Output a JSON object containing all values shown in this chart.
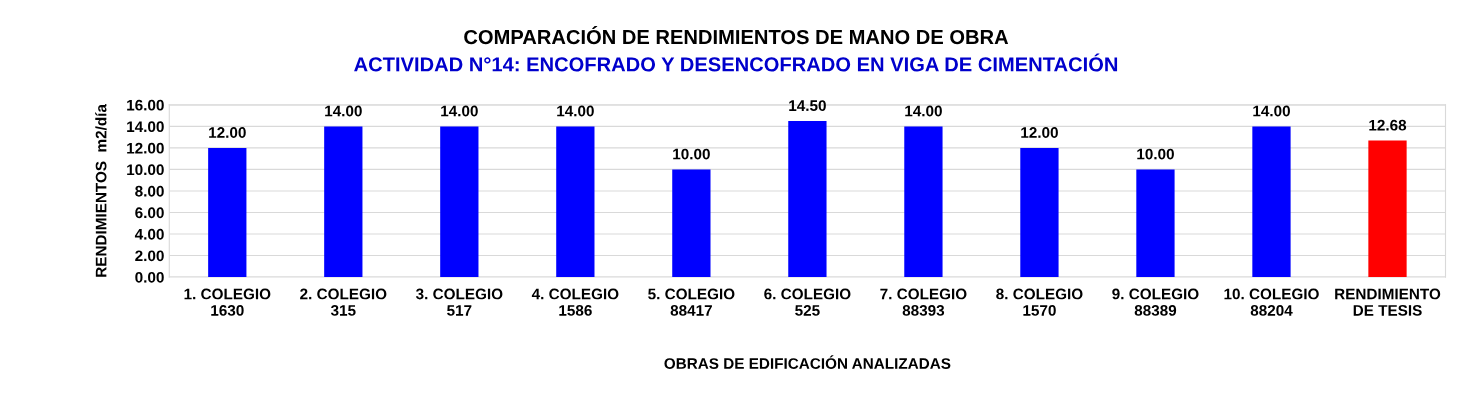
{
  "chart_data": {
    "type": "bar",
    "title": "COMPARACIÓN DE RENDIMIENTOS DE MANO DE OBRA",
    "subtitle": "ACTIVIDAD N°14: ENCOFRADO Y DESENCOFRADO EN VIGA DE CIMENTACIÓN",
    "xlabel": "OBRAS DE EDIFICACIÓN ANALIZADAS",
    "ylabel": "RENDIMIENTOS  m2/día",
    "categories": [
      "1. COLEGIO\n1630",
      "2. COLEGIO\n315",
      "3. COLEGIO\n517",
      "4. COLEGIO\n1586",
      "5. COLEGIO\n88417",
      "6. COLEGIO\n525",
      "7. COLEGIO\n88393",
      "8. COLEGIO\n1570",
      "9. COLEGIO\n88389",
      "10. COLEGIO\n88204",
      "RENDIMIENTO\nDE TESIS"
    ],
    "values": [
      12.0,
      14.0,
      14.0,
      14.0,
      10.0,
      14.5,
      14.0,
      12.0,
      10.0,
      14.0,
      12.68
    ],
    "value_labels": [
      "12.00",
      "14.00",
      "14.00",
      "14.00",
      "10.00",
      "14.50",
      "14.00",
      "12.00",
      "10.00",
      "14.00",
      "12.68"
    ],
    "colors": [
      "#0000ff",
      "#0000ff",
      "#0000ff",
      "#0000ff",
      "#0000ff",
      "#0000ff",
      "#0000ff",
      "#0000ff",
      "#0000ff",
      "#0000ff",
      "#ff0000"
    ],
    "ylim": [
      0,
      16
    ],
    "yticks": [
      {
        "value": 0,
        "label": "0.00"
      },
      {
        "value": 2,
        "label": "2.00"
      },
      {
        "value": 4,
        "label": "4.00"
      },
      {
        "value": 6,
        "label": "6.00"
      },
      {
        "value": 8,
        "label": "8.00"
      },
      {
        "value": 10,
        "label": "10.00"
      },
      {
        "value": 12,
        "label": "12.00"
      },
      {
        "value": 14,
        "label": "14.00"
      },
      {
        "value": 16,
        "label": "16.00"
      }
    ],
    "grid": "y",
    "legend": false
  }
}
